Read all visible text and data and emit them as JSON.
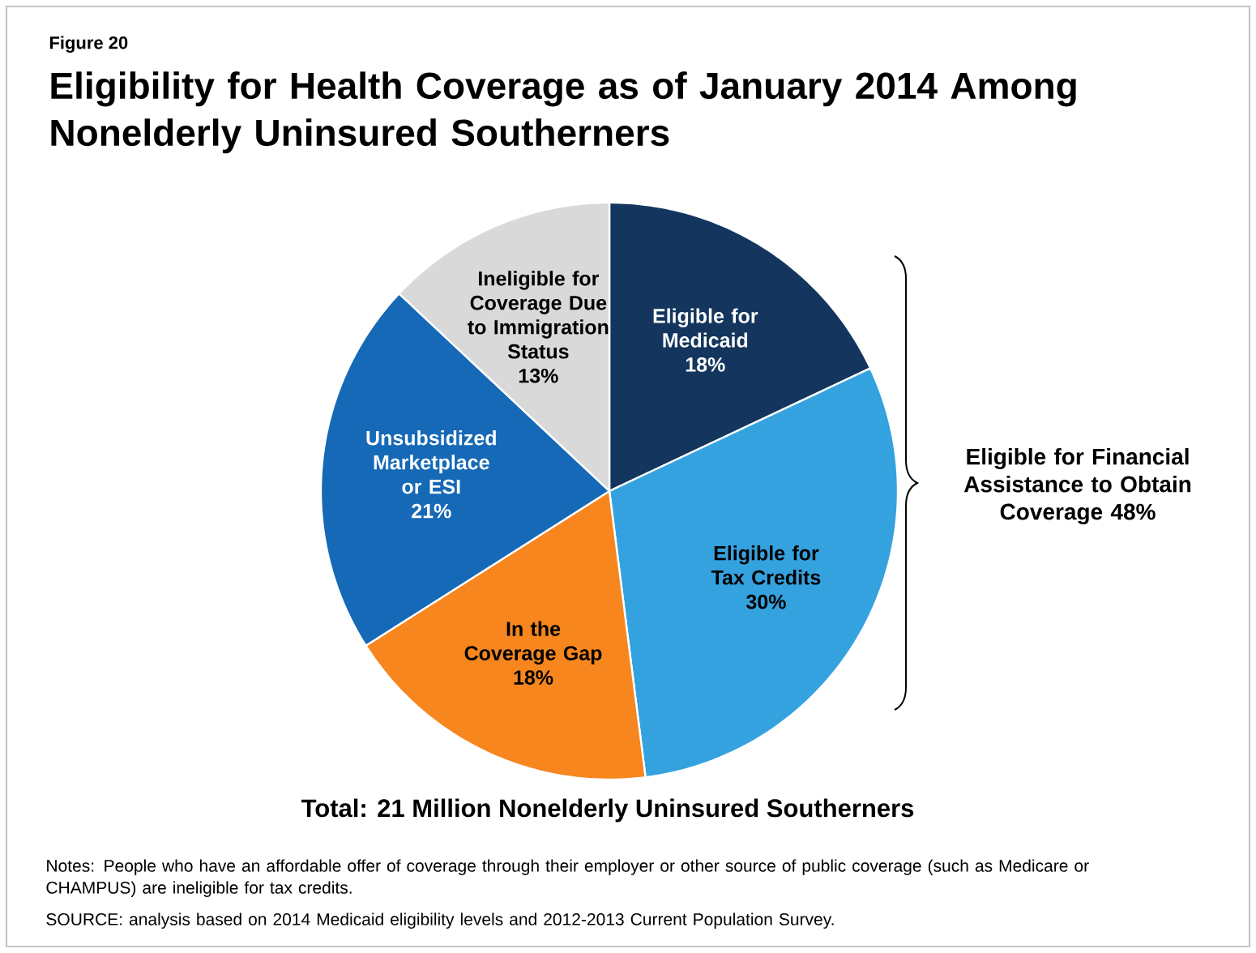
{
  "chart_data": {
    "type": "pie",
    "title": "Eligibility for Health Coverage as of January 2014 Among Nonelderly Uninsured Southerners",
    "categories": [
      "Eligible for Medicaid",
      "Eligible for Tax Credits",
      "In the Coverage Gap",
      "Unsubsidized Marketplace or ESI",
      "Ineligible for Coverage Due to Immigration Status"
    ],
    "values": [
      18,
      30,
      18,
      21,
      13
    ],
    "value_labels": [
      "18%",
      "30%",
      "18%",
      "21%",
      "13%"
    ],
    "colors": [
      "#14365e",
      "#35a2e0",
      "#f7861e",
      "#1569b6",
      "#d9d9d9"
    ],
    "annotations": [
      "Figure 20",
      "Total: 21 Million Nonelderly Uninsured Southerners",
      "Notes: People who have an affordable offer of coverage through their employer or other source of public coverage (such as Medicare or CHAMPUS) are ineligible for tax credits.",
      "SOURCE: analysis based on 2014 Medicaid eligibility levels and 2012-2013 Current Population Survey.",
      "Eligible for Financial Assistance to Obtain Coverage 48%"
    ]
  }
}
